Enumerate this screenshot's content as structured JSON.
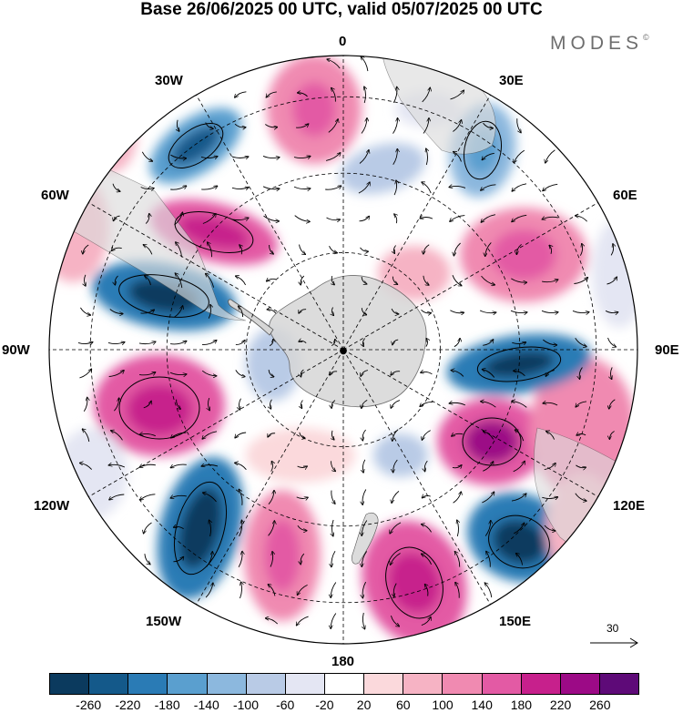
{
  "title": "Base 26/06/2025 00 UTC, valid 05/07/2025 00 UTC",
  "brand": "MODES",
  "brand_mark": "©",
  "longitude_labels": {
    "top": "0",
    "top_right": "30E",
    "right_upper": "60E",
    "right": "90E",
    "right_lower": "120E",
    "bottom_right": "150E",
    "bottom": "180",
    "bottom_left": "150W",
    "left_lower": "120W",
    "left": "90W",
    "left_upper": "60W",
    "top_left": "30W"
  },
  "reference_vector": "30",
  "colorbar": {
    "colors": [
      "#0b3a5e",
      "#14598a",
      "#2a7bb5",
      "#5a9fcf",
      "#8cb8de",
      "#b9cbe6",
      "#e4e6f3",
      "#ffffff",
      "#fbd9dc",
      "#f6b3c4",
      "#f08ab1",
      "#e35aa4",
      "#c7208c",
      "#9c0a86",
      "#5e0a78"
    ],
    "ticks": [
      "-260",
      "-220",
      "-180",
      "-140",
      "-100",
      "-60",
      "-20",
      "20",
      "60",
      "100",
      "140",
      "180",
      "220",
      "260"
    ]
  },
  "map_colors": {
    "land": "#dcdcdc",
    "ocean": "#ffffff",
    "grid": "#000000"
  }
}
